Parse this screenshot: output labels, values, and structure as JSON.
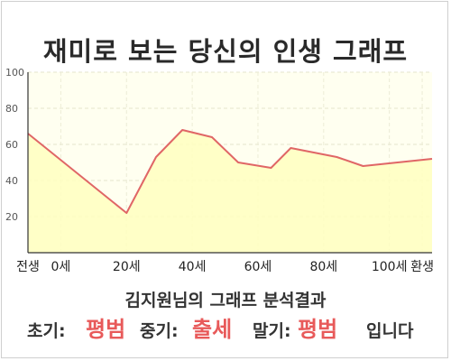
{
  "title": "재미로 보는 당신의 인생 그래프",
  "subtitle": "김지원님의 그래프 분석결과",
  "result": {
    "early_label": "초기:",
    "early_value": "평범",
    "mid_label": "중기:",
    "mid_value": "출세",
    "late_label": "말기:",
    "late_value": "평범",
    "suffix": "입니다"
  },
  "colors": {
    "line": "#e06666",
    "fill": "#ffffc0",
    "background": "#fffff0",
    "highlight": "#e85a5a"
  },
  "chart_data": {
    "type": "area",
    "ylim": [
      0,
      100
    ],
    "yticks": [
      20,
      40,
      60,
      80,
      100
    ],
    "xticks": [
      {
        "x": -10,
        "label": "전생"
      },
      {
        "x": 0,
        "label": "0세"
      },
      {
        "x": 20,
        "label": "20세"
      },
      {
        "x": 40,
        "label": "40세"
      },
      {
        "x": 60,
        "label": "60세"
      },
      {
        "x": 80,
        "label": "80세"
      },
      {
        "x": 100,
        "label": "100세"
      },
      {
        "x": 110,
        "label": "환생"
      }
    ],
    "xlim": [
      -10,
      113
    ],
    "grid": true,
    "series": [
      {
        "x": [
          -10,
          20,
          29,
          37,
          46,
          54,
          64,
          70,
          84,
          92,
          113
        ],
        "y": [
          66,
          22,
          53,
          68,
          64,
          50,
          47,
          58,
          53,
          48,
          52
        ]
      }
    ]
  }
}
